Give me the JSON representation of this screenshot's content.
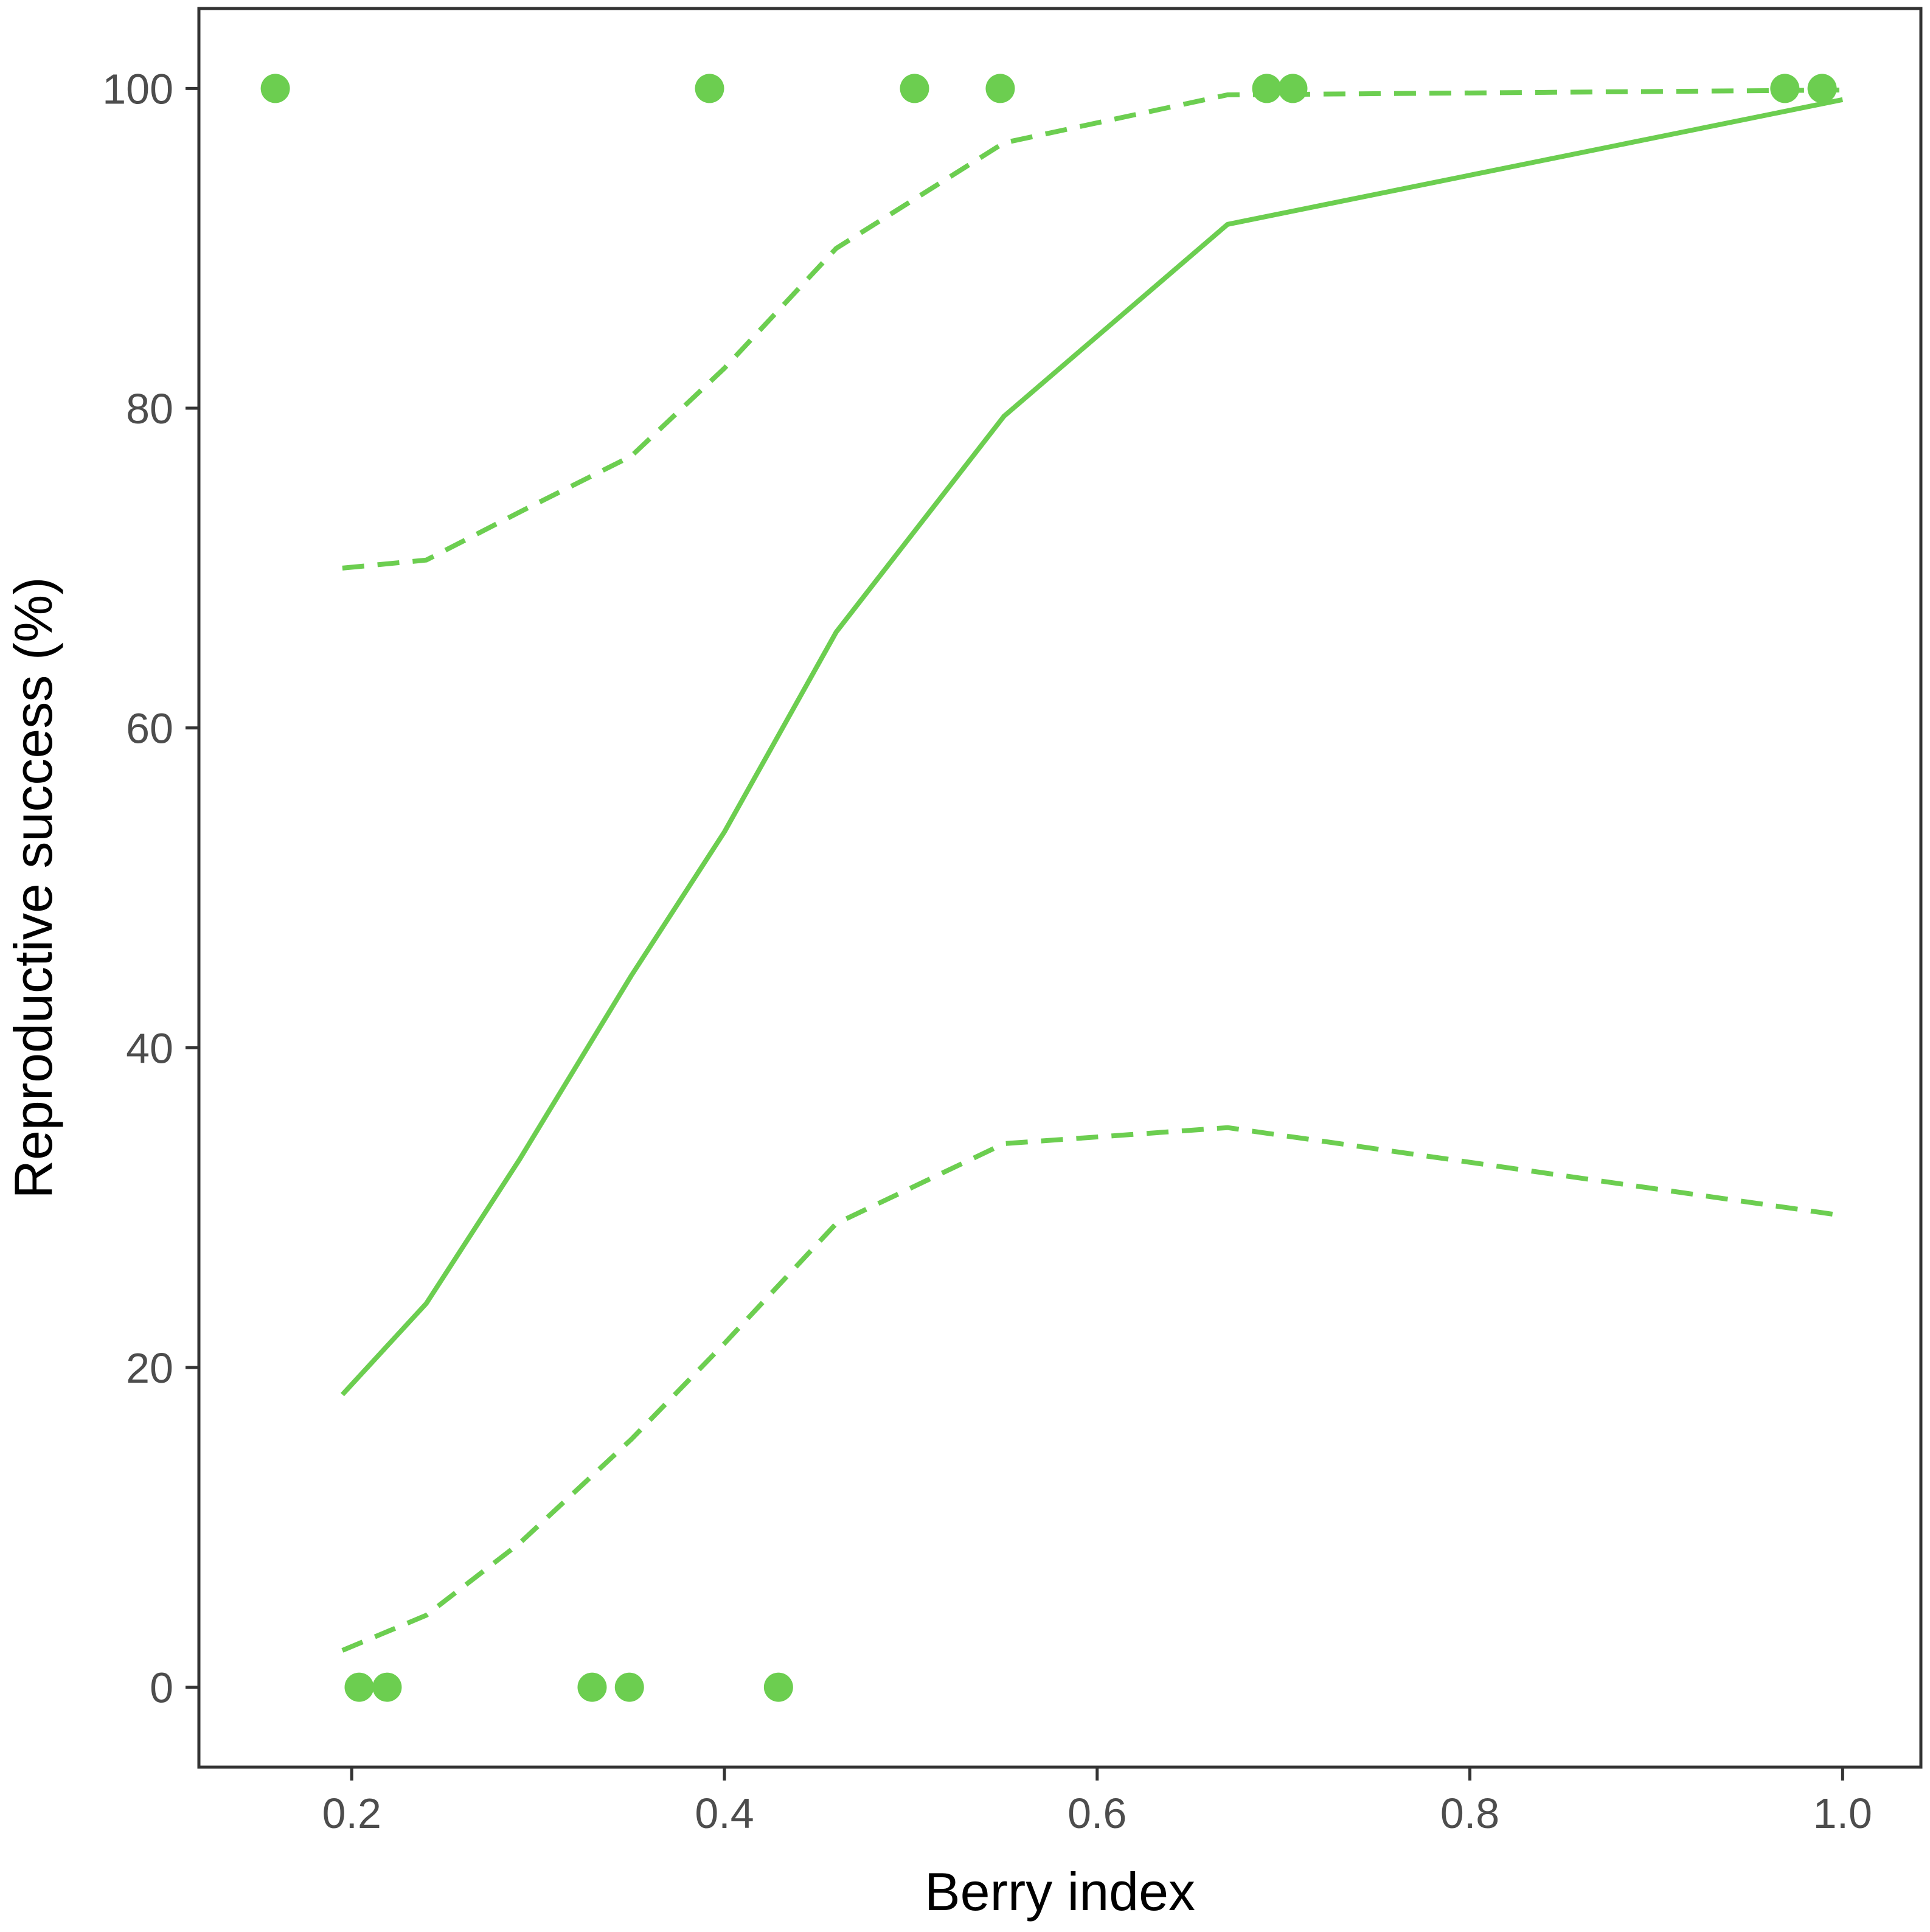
{
  "colors": {
    "series": "#6cce50",
    "axis": "#333333",
    "tick_text": "#4d4d4d"
  },
  "chart_data": {
    "type": "scatter",
    "title": "",
    "xlabel": "Berry index",
    "ylabel": "Reproductive success (%)",
    "xlim": [
      0.118,
      1.042
    ],
    "ylim": [
      -5,
      105
    ],
    "xticks": [
      0.2,
      0.4,
      0.6,
      0.8,
      1.0
    ],
    "xtick_labels": [
      "0.2",
      "0.4",
      "0.6",
      "0.8",
      "1.0"
    ],
    "yticks": [
      0,
      20,
      40,
      60,
      80,
      100
    ],
    "ytick_labels": [
      "0",
      "20",
      "40",
      "60",
      "80",
      "100"
    ],
    "grid": false,
    "points": {
      "x": [
        0.159,
        0.204,
        0.219,
        0.329,
        0.349,
        0.392,
        0.429,
        0.502,
        0.548,
        0.691,
        0.705,
        0.969,
        0.989
      ],
      "y": [
        100,
        0,
        0,
        0,
        0,
        100,
        0,
        100,
        100,
        100,
        100,
        100,
        100
      ]
    },
    "fit": {
      "x": [
        0.195,
        0.24,
        0.29,
        0.35,
        0.4,
        0.46,
        0.55,
        0.67,
        1.0
      ],
      "y": [
        18.3,
        24.0,
        33.0,
        44.5,
        53.5,
        66.0,
        79.5,
        91.5,
        99.3
      ]
    },
    "ci_upper": {
      "x": [
        0.195,
        0.24,
        0.29,
        0.35,
        0.4,
        0.46,
        0.55,
        0.67,
        1.0
      ],
      "y": [
        70.0,
        70.5,
        73.5,
        77.0,
        82.5,
        90.0,
        96.6,
        99.6,
        99.9
      ]
    },
    "ci_lower": {
      "x": [
        0.195,
        0.24,
        0.29,
        0.35,
        0.4,
        0.46,
        0.55,
        0.67,
        1.0
      ],
      "y": [
        2.3,
        4.5,
        9.0,
        15.5,
        21.5,
        29.0,
        34.0,
        35.0,
        29.5
      ]
    }
  }
}
